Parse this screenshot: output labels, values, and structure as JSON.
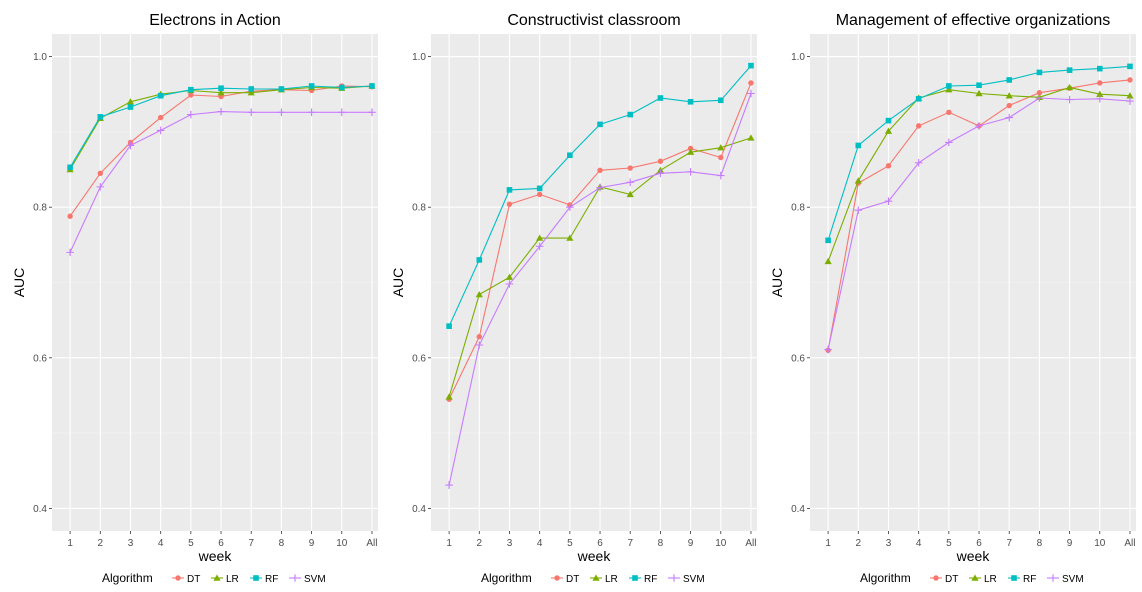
{
  "chart_data": [
    {
      "type": "line",
      "title": "Electrons in Action",
      "xlabel": "week",
      "ylabel": "AUC",
      "categories": [
        "1",
        "2",
        "3",
        "4",
        "5",
        "6",
        "7",
        "8",
        "9",
        "10",
        "All"
      ],
      "ylim": [
        0.37,
        1.03
      ],
      "yticks": [
        "0.4",
        "0.6",
        "0.8",
        "1.0"
      ],
      "grid": true,
      "legend": {
        "title": "Algorithm",
        "position": "bottom"
      },
      "series": [
        {
          "name": "DT",
          "color": "#f8766d",
          "marker": "circle",
          "values": [
            0.788,
            0.845,
            0.886,
            0.919,
            0.949,
            0.947,
            0.954,
            0.956,
            0.955,
            0.961,
            0.96
          ]
        },
        {
          "name": "LR",
          "color": "#7cae00",
          "marker": "triangle",
          "values": [
            0.85,
            0.918,
            0.94,
            0.95,
            0.955,
            0.952,
            0.952,
            0.956,
            0.959,
            0.958,
            0.961
          ]
        },
        {
          "name": "RF",
          "color": "#00bfc4",
          "marker": "square",
          "values": [
            0.853,
            0.92,
            0.933,
            0.948,
            0.956,
            0.958,
            0.957,
            0.957,
            0.961,
            0.959,
            0.961
          ]
        },
        {
          "name": "SVM",
          "color": "#c77cff",
          "marker": "plus",
          "values": [
            0.74,
            0.827,
            0.882,
            0.902,
            0.923,
            0.927,
            0.926,
            0.926,
            0.926,
            0.926,
            0.926
          ]
        }
      ]
    },
    {
      "type": "line",
      "title": "Constructivist classroom",
      "xlabel": "week",
      "ylabel": "AUC",
      "categories": [
        "1",
        "2",
        "3",
        "4",
        "5",
        "6",
        "7",
        "8",
        "9",
        "10",
        "All"
      ],
      "ylim": [
        0.37,
        1.03
      ],
      "yticks": [
        "0.4",
        "0.6",
        "0.8",
        "1.0"
      ],
      "grid": true,
      "legend": {
        "title": "Algorithm",
        "position": "bottom"
      },
      "series": [
        {
          "name": "DT",
          "color": "#f8766d",
          "marker": "circle",
          "values": [
            0.545,
            0.628,
            0.804,
            0.817,
            0.803,
            0.849,
            0.852,
            0.861,
            0.878,
            0.866,
            0.965
          ]
        },
        {
          "name": "LR",
          "color": "#7cae00",
          "marker": "triangle",
          "values": [
            0.548,
            0.684,
            0.707,
            0.759,
            0.759,
            0.827,
            0.817,
            0.849,
            0.873,
            0.879,
            0.892
          ]
        },
        {
          "name": "RF",
          "color": "#00bfc4",
          "marker": "square",
          "values": [
            0.642,
            0.73,
            0.823,
            0.825,
            0.869,
            0.91,
            0.923,
            0.945,
            0.94,
            0.942,
            0.988
          ]
        },
        {
          "name": "SVM",
          "color": "#c77cff",
          "marker": "plus",
          "values": [
            0.431,
            0.617,
            0.698,
            0.748,
            0.8,
            0.826,
            0.833,
            0.845,
            0.847,
            0.842,
            0.951
          ]
        }
      ]
    },
    {
      "type": "line",
      "title": "Management of effective organizations",
      "xlabel": "week",
      "ylabel": "AUC",
      "categories": [
        "1",
        "2",
        "3",
        "4",
        "5",
        "6",
        "7",
        "8",
        "9",
        "10",
        "All"
      ],
      "ylim": [
        0.37,
        1.03
      ],
      "yticks": [
        "0.4",
        "0.6",
        "0.8",
        "1.0"
      ],
      "grid": true,
      "legend": {
        "title": "Algorithm",
        "position": "bottom"
      },
      "series": [
        {
          "name": "DT",
          "color": "#f8766d",
          "marker": "circle",
          "values": [
            0.61,
            0.832,
            0.855,
            0.908,
            0.926,
            0.908,
            0.935,
            0.952,
            0.958,
            0.965,
            0.969
          ]
        },
        {
          "name": "LR",
          "color": "#7cae00",
          "marker": "triangle",
          "values": [
            0.728,
            0.835,
            0.901,
            0.945,
            0.956,
            0.951,
            0.948,
            0.946,
            0.959,
            0.95,
            0.948
          ]
        },
        {
          "name": "RF",
          "color": "#00bfc4",
          "marker": "square",
          "values": [
            0.756,
            0.882,
            0.915,
            0.944,
            0.961,
            0.962,
            0.969,
            0.979,
            0.982,
            0.984,
            0.987
          ]
        },
        {
          "name": "SVM",
          "color": "#c77cff",
          "marker": "plus",
          "values": [
            0.611,
            0.796,
            0.808,
            0.859,
            0.886,
            0.908,
            0.919,
            0.945,
            0.943,
            0.944,
            0.941
          ]
        }
      ]
    }
  ]
}
